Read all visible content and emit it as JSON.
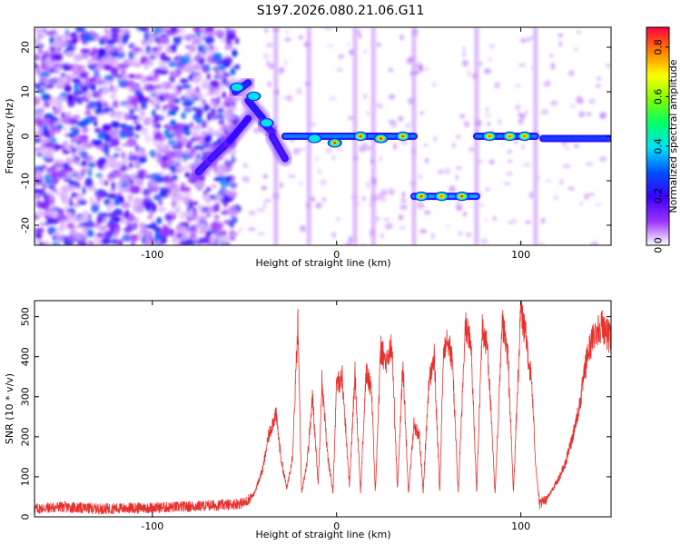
{
  "title": "S197.2026.080.21.06.G11",
  "chart_data": [
    {
      "type": "heatmap",
      "name": "spectrogram",
      "xlabel": "Height of straight line (km)",
      "ylabel": "Frequency (Hz)",
      "xlim": [
        -164,
        149
      ],
      "ylim": [
        -24.5,
        24.5
      ],
      "xticks": [
        "-100",
        "0",
        "100"
      ],
      "xtick_values": [
        -100,
        0,
        100
      ],
      "yticks": [
        "-20",
        "-10",
        "0",
        "10",
        "20"
      ],
      "ytick_values": [
        -20,
        -10,
        0,
        10,
        20
      ],
      "colorbar": {
        "label": "Normalized spectral amplitude",
        "range": [
          0,
          0.88
        ],
        "ticks": [
          "0.0",
          "0.2",
          "0.4",
          "0.6",
          "0.8"
        ],
        "tick_values": [
          0.0,
          0.2,
          0.4,
          0.6,
          0.8
        ],
        "colors": [
          "#ffffff",
          "#9a30ff",
          "#3a00ff",
          "#0050ff",
          "#00e0ff",
          "#00ff6a",
          "#7aff00",
          "#ffff00",
          "#ff8000",
          "#ff0040"
        ]
      },
      "noise_region_x": [
        -164,
        -58
      ],
      "signal_track": [
        {
          "x": [
            -75,
            -68
          ],
          "freq": [
            -8,
            -5
          ],
          "amp": 0.3
        },
        {
          "x": [
            -68,
            -58
          ],
          "freq": [
            -5,
            -1
          ],
          "amp": 0.3
        },
        {
          "x": [
            -58,
            -48
          ],
          "freq": [
            -1,
            4
          ],
          "amp": 0.35
        },
        {
          "x": [
            -55,
            -48
          ],
          "freq": [
            10,
            12
          ],
          "amp": 0.45
        },
        {
          "x": [
            -48,
            -40
          ],
          "freq": [
            8,
            4
          ],
          "amp": 0.4
        },
        {
          "x": [
            -40,
            -35
          ],
          "freq": [
            3,
            1
          ],
          "amp": 0.4
        },
        {
          "x": [
            -35,
            -28
          ],
          "freq": [
            0,
            -5
          ],
          "amp": 0.3
        },
        {
          "x": [
            -28,
            42
          ],
          "freq": [
            0,
            0
          ],
          "amp": 0.6
        },
        {
          "x": [
            42,
            76
          ],
          "freq": [
            -13.5,
            -13.5
          ],
          "amp": 0.65
        },
        {
          "x": [
            76,
            108
          ],
          "freq": [
            0,
            0
          ],
          "amp": 0.6
        },
        {
          "x": [
            112,
            148
          ],
          "freq": [
            -0.5,
            -0.5
          ],
          "amp": 0.5
        }
      ],
      "hotspots": [
        {
          "x": -54,
          "freq": 11,
          "amp": 0.45
        },
        {
          "x": -45,
          "freq": 9,
          "amp": 0.4
        },
        {
          "x": -38,
          "freq": 3,
          "amp": 0.45
        },
        {
          "x": -12,
          "freq": -0.5,
          "amp": 0.5
        },
        {
          "x": -1,
          "freq": -1.5,
          "amp": 0.85
        },
        {
          "x": 13,
          "freq": 0,
          "amp": 0.85
        },
        {
          "x": 24,
          "freq": -0.5,
          "amp": 0.85
        },
        {
          "x": 36,
          "freq": 0,
          "amp": 0.85
        },
        {
          "x": 46,
          "freq": -13.5,
          "amp": 0.85
        },
        {
          "x": 57,
          "freq": -13.5,
          "amp": 0.8
        },
        {
          "x": 68,
          "freq": -13.5,
          "amp": 0.85
        },
        {
          "x": 83,
          "freq": 0,
          "amp": 0.8
        },
        {
          "x": 94,
          "freq": 0,
          "amp": 0.8
        },
        {
          "x": 102,
          "freq": 0,
          "amp": 0.8
        }
      ],
      "vertical_streaks_x": [
        -33,
        -15,
        10,
        20,
        42,
        76,
        108
      ]
    },
    {
      "type": "line",
      "name": "snr",
      "xlabel": "Height of straight line (km)",
      "ylabel": "SNR (10 * v/v)",
      "xlim": [
        -164,
        149
      ],
      "ylim": [
        0,
        540
      ],
      "xticks": [
        "-100",
        "0",
        "100"
      ],
      "xtick_values": [
        -100,
        0,
        100
      ],
      "yticks": [
        "0",
        "100",
        "200",
        "300",
        "400",
        "500"
      ],
      "ytick_values": [
        0,
        100,
        200,
        300,
        400,
        500
      ],
      "color": "#e8302d",
      "x": [
        -164,
        -150,
        -130,
        -110,
        -90,
        -70,
        -60,
        -50,
        -45,
        -40,
        -37,
        -33,
        -30,
        -27,
        -24,
        -21,
        -19,
        -16,
        -13,
        -10,
        -8,
        -5,
        -2,
        0,
        3,
        7,
        10,
        13,
        16,
        19,
        21,
        24,
        27,
        30,
        33,
        36,
        39,
        42,
        45,
        47,
        50,
        53,
        56,
        58,
        60,
        63,
        66,
        70,
        73,
        76,
        79,
        82,
        86,
        90,
        93,
        96,
        100,
        103,
        106,
        108,
        110,
        113,
        116,
        120,
        124,
        128,
        132,
        136,
        140,
        144,
        149
      ],
      "y": [
        20,
        25,
        20,
        22,
        24,
        28,
        30,
        35,
        55,
        120,
        200,
        260,
        140,
        70,
        150,
        480,
        60,
        140,
        300,
        80,
        340,
        160,
        60,
        330,
        350,
        80,
        360,
        60,
        360,
        320,
        60,
        420,
        380,
        430,
        70,
        380,
        60,
        230,
        200,
        60,
        330,
        400,
        60,
        410,
        460,
        380,
        60,
        480,
        430,
        60,
        470,
        420,
        60,
        480,
        400,
        60,
        520,
        440,
        330,
        140,
        30,
        40,
        60,
        90,
        130,
        200,
        280,
        400,
        460,
        480,
        440
      ]
    }
  ]
}
